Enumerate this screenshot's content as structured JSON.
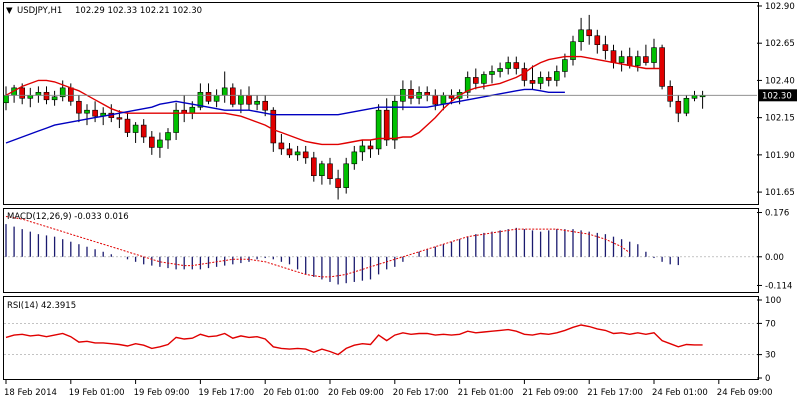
{
  "chart_data": [
    {
      "type": "candlestick",
      "title": "USDJPY,H1",
      "ohlc_label": "102.29 102.33 102.21 102.30",
      "current_price": 102.3,
      "current_label": "102.30",
      "ylim": [
        101.57,
        102.92
      ],
      "yticks": [
        101.65,
        101.9,
        102.15,
        102.4,
        102.65,
        102.9
      ],
      "ytick_labels": [
        "101.65",
        "101.90",
        "102.15",
        "102.40",
        "102.65",
        "102.90"
      ],
      "time_labels": [
        {
          "label": "18 Feb 2014",
          "index": 0
        },
        {
          "label": "19 Feb 01:00",
          "index": 8
        },
        {
          "label": "19 Feb 09:00",
          "index": 16
        },
        {
          "label": "19 Feb 17:00",
          "index": 24
        },
        {
          "label": "20 Feb 01:00",
          "index": 32
        },
        {
          "label": "20 Feb 09:00",
          "index": 40
        },
        {
          "label": "20 Feb 17:00",
          "index": 48
        },
        {
          "label": "21 Feb 01:00",
          "index": 56
        },
        {
          "label": "21 Feb 09:00",
          "index": 64
        },
        {
          "label": "21 Feb 17:00",
          "index": 72
        },
        {
          "label": "24 Feb 01:00",
          "index": 80
        },
        {
          "label": "24 Feb 09:00",
          "index": 88
        }
      ],
      "candles": [
        [
          102.25,
          102.36,
          102.2,
          102.3
        ],
        [
          102.3,
          102.37,
          102.25,
          102.35
        ],
        [
          102.35,
          102.38,
          102.24,
          102.28
        ],
        [
          102.28,
          102.35,
          102.22,
          102.3
        ],
        [
          102.3,
          102.36,
          102.25,
          102.32
        ],
        [
          102.32,
          102.36,
          102.24,
          102.27
        ],
        [
          102.27,
          102.33,
          102.23,
          102.29
        ],
        [
          102.29,
          102.4,
          102.26,
          102.35
        ],
        [
          102.35,
          102.38,
          102.23,
          102.26
        ],
        [
          102.26,
          102.3,
          102.12,
          102.18
        ],
        [
          102.18,
          102.24,
          102.1,
          102.2
        ],
        [
          102.2,
          102.26,
          102.12,
          102.16
        ],
        [
          102.16,
          102.22,
          102.1,
          102.18
        ],
        [
          102.18,
          102.24,
          102.12,
          102.15
        ],
        [
          102.15,
          102.2,
          102.08,
          102.14
        ],
        [
          102.14,
          102.18,
          102.02,
          102.05
        ],
        [
          102.05,
          102.12,
          101.98,
          102.1
        ],
        [
          102.1,
          102.14,
          101.98,
          102.02
        ],
        [
          102.02,
          102.06,
          101.9,
          101.95
        ],
        [
          101.95,
          102.05,
          101.88,
          102.0
        ],
        [
          102.0,
          102.08,
          101.94,
          102.05
        ],
        [
          102.05,
          102.25,
          102.0,
          102.2
        ],
        [
          102.2,
          102.3,
          102.12,
          102.18
        ],
        [
          102.18,
          102.26,
          102.14,
          102.22
        ],
        [
          102.22,
          102.38,
          102.2,
          102.32
        ],
        [
          102.32,
          102.38,
          102.24,
          102.26
        ],
        [
          102.26,
          102.34,
          102.22,
          102.3
        ],
        [
          102.3,
          102.46,
          102.25,
          102.35
        ],
        [
          102.35,
          102.38,
          102.22,
          102.24
        ],
        [
          102.24,
          102.34,
          102.18,
          102.3
        ],
        [
          102.3,
          102.36,
          102.2,
          102.24
        ],
        [
          102.24,
          102.3,
          102.2,
          102.26
        ],
        [
          102.26,
          102.3,
          102.16,
          102.2
        ],
        [
          102.2,
          102.22,
          101.92,
          101.98
        ],
        [
          101.98,
          102.04,
          101.9,
          101.94
        ],
        [
          101.94,
          101.98,
          101.88,
          101.9
        ],
        [
          101.9,
          101.96,
          101.86,
          101.92
        ],
        [
          101.92,
          101.96,
          101.84,
          101.88
        ],
        [
          101.88,
          101.92,
          101.72,
          101.76
        ],
        [
          101.76,
          101.86,
          101.7,
          101.84
        ],
        [
          101.84,
          101.88,
          101.7,
          101.74
        ],
        [
          101.74,
          101.8,
          101.6,
          101.68
        ],
        [
          101.68,
          101.88,
          101.64,
          101.84
        ],
        [
          101.84,
          101.96,
          101.8,
          101.92
        ],
        [
          101.92,
          102.0,
          101.86,
          101.96
        ],
        [
          101.96,
          102.0,
          101.88,
          101.94
        ],
        [
          101.94,
          102.24,
          101.9,
          102.2
        ],
        [
          102.2,
          102.28,
          101.96,
          102.0
        ],
        [
          102.0,
          102.3,
          101.94,
          102.26
        ],
        [
          102.26,
          102.4,
          102.2,
          102.34
        ],
        [
          102.34,
          102.4,
          102.24,
          102.28
        ],
        [
          102.28,
          102.36,
          102.24,
          102.32
        ],
        [
          102.32,
          102.36,
          102.26,
          102.3
        ],
        [
          102.3,
          102.34,
          102.2,
          102.24
        ],
        [
          102.24,
          102.32,
          102.2,
          102.3
        ],
        [
          102.3,
          102.34,
          102.24,
          102.28
        ],
        [
          102.28,
          102.34,
          102.24,
          102.32
        ],
        [
          102.32,
          102.46,
          102.28,
          102.42
        ],
        [
          102.42,
          102.48,
          102.34,
          102.38
        ],
        [
          102.38,
          102.46,
          102.34,
          102.44
        ],
        [
          102.44,
          102.5,
          102.38,
          102.46
        ],
        [
          102.46,
          102.52,
          102.42,
          102.48
        ],
        [
          102.48,
          102.56,
          102.44,
          102.52
        ],
        [
          102.52,
          102.56,
          102.44,
          102.48
        ],
        [
          102.48,
          102.52,
          102.36,
          102.4
        ],
        [
          102.4,
          102.5,
          102.34,
          102.38
        ],
        [
          102.38,
          102.46,
          102.34,
          102.42
        ],
        [
          102.42,
          102.46,
          102.36,
          102.4
        ],
        [
          102.4,
          102.5,
          102.36,
          102.46
        ],
        [
          102.46,
          102.58,
          102.42,
          102.54
        ],
        [
          102.54,
          102.7,
          102.5,
          102.66
        ],
        [
          102.66,
          102.82,
          102.6,
          102.74
        ],
        [
          102.74,
          102.84,
          102.64,
          102.7
        ],
        [
          102.7,
          102.74,
          102.58,
          102.64
        ],
        [
          102.64,
          102.7,
          102.54,
          102.6
        ],
        [
          102.6,
          102.64,
          102.48,
          102.52
        ],
        [
          102.52,
          102.6,
          102.46,
          102.56
        ],
        [
          102.56,
          102.62,
          102.48,
          102.5
        ],
        [
          102.5,
          102.6,
          102.46,
          102.56
        ],
        [
          102.56,
          102.64,
          102.5,
          102.52
        ],
        [
          102.52,
          102.68,
          102.48,
          102.62
        ],
        [
          102.62,
          102.64,
          102.34,
          102.36
        ],
        [
          102.36,
          102.4,
          102.22,
          102.26
        ],
        [
          102.26,
          102.3,
          102.12,
          102.18
        ],
        [
          102.18,
          102.3,
          102.16,
          102.28
        ],
        [
          102.28,
          102.33,
          102.26,
          102.3
        ],
        [
          102.29,
          102.33,
          102.21,
          102.3
        ]
      ],
      "series": [
        {
          "name": "ma_fast",
          "color": "#e00000",
          "values": [
            102.3,
            102.33,
            102.36,
            102.38,
            102.4,
            102.4,
            102.39,
            102.37,
            102.35,
            102.33,
            102.3,
            102.27,
            102.24,
            102.21,
            102.19,
            102.18,
            102.18,
            102.18,
            102.18,
            102.18,
            102.18,
            102.18,
            102.18,
            102.18,
            102.18,
            102.18,
            102.18,
            102.18,
            102.17,
            102.16,
            102.14,
            102.12,
            102.1,
            102.07,
            102.05,
            102.03,
            102.01,
            101.99,
            101.98,
            101.97,
            101.97,
            101.97,
            101.98,
            101.99,
            102.0,
            102.0,
            102.01,
            102.01,
            102.01,
            102.02,
            102.02,
            102.05,
            102.1,
            102.15,
            102.21,
            102.26,
            102.3,
            102.33,
            102.35,
            102.36,
            102.37,
            102.38,
            102.4,
            102.42,
            102.45,
            102.49,
            102.52,
            102.54,
            102.55,
            102.56,
            102.56,
            102.56,
            102.55,
            102.54,
            102.53,
            102.52,
            102.51,
            102.5,
            102.49,
            102.48,
            102.48,
            102.48
          ]
        },
        {
          "name": "ma_slow",
          "color": "#0000c0",
          "values": [
            101.98,
            102.0,
            102.02,
            102.04,
            102.06,
            102.08,
            102.1,
            102.11,
            102.12,
            102.13,
            102.14,
            102.15,
            102.16,
            102.17,
            102.18,
            102.19,
            102.2,
            102.21,
            102.22,
            102.24,
            102.25,
            102.26,
            102.25,
            102.24,
            102.23,
            102.22,
            102.21,
            102.2,
            102.2,
            102.2,
            102.2,
            102.19,
            102.18,
            102.17,
            102.17,
            102.17,
            102.17,
            102.17,
            102.17,
            102.17,
            102.17,
            102.17,
            102.18,
            102.19,
            102.2,
            102.21,
            102.22,
            102.22,
            102.22,
            102.22,
            102.22,
            102.22,
            102.22,
            102.23,
            102.24,
            102.25,
            102.26,
            102.27,
            102.28,
            102.29,
            102.3,
            102.31,
            102.32,
            102.33,
            102.34,
            102.34,
            102.33,
            102.32,
            102.32,
            102.32
          ]
        }
      ]
    },
    {
      "type": "histogram",
      "title": "MACD(12,26,9) -0.033 0.016",
      "ylim": [
        -0.14,
        0.19
      ],
      "yticks": [
        0.176,
        0.0,
        -0.114
      ],
      "ytick_labels": [
        "0.176",
        "0.00",
        "-0.114"
      ],
      "values": [
        0.13,
        0.12,
        0.11,
        0.1,
        0.09,
        0.085,
        0.08,
        0.07,
        0.06,
        0.05,
        0.04,
        0.03,
        0.02,
        0.01,
        0.0,
        -0.01,
        -0.02,
        -0.03,
        -0.035,
        -0.04,
        -0.045,
        -0.05,
        -0.05,
        -0.05,
        -0.05,
        -0.045,
        -0.04,
        -0.035,
        -0.03,
        -0.025,
        -0.02,
        -0.01,
        -0.005,
        -0.01,
        -0.02,
        -0.03,
        -0.05,
        -0.07,
        -0.08,
        -0.09,
        -0.1,
        -0.11,
        -0.105,
        -0.1,
        -0.095,
        -0.09,
        -0.07,
        -0.05,
        -0.04,
        -0.02,
        0.0,
        0.02,
        0.03,
        0.04,
        0.05,
        0.06,
        0.07,
        0.08,
        0.09,
        0.095,
        0.1,
        0.105,
        0.11,
        0.115,
        0.11,
        0.105,
        0.1,
        0.105,
        0.11,
        0.11,
        0.11,
        0.105,
        0.1,
        0.095,
        0.09,
        0.08,
        0.07,
        0.06,
        0.05,
        0.02,
        -0.005,
        -0.02,
        -0.03,
        -0.033
      ],
      "series": [
        {
          "name": "signal",
          "color": "#e00000",
          "values": [
            0.16,
            0.155,
            0.15,
            0.14,
            0.13,
            0.12,
            0.11,
            0.1,
            0.09,
            0.08,
            0.07,
            0.06,
            0.05,
            0.04,
            0.03,
            0.02,
            0.01,
            0.0,
            -0.01,
            -0.02,
            -0.025,
            -0.03,
            -0.035,
            -0.035,
            -0.03,
            -0.025,
            -0.02,
            -0.015,
            -0.01,
            -0.01,
            -0.01,
            -0.015,
            -0.02,
            -0.03,
            -0.04,
            -0.05,
            -0.06,
            -0.07,
            -0.075,
            -0.08,
            -0.08,
            -0.075,
            -0.07,
            -0.06,
            -0.05,
            -0.04,
            -0.03,
            -0.02,
            -0.01,
            0.0,
            0.01,
            0.02,
            0.03,
            0.04,
            0.05,
            0.06,
            0.07,
            0.08,
            0.085,
            0.09,
            0.095,
            0.1,
            0.105,
            0.11,
            0.11,
            0.11,
            0.11,
            0.11,
            0.11,
            0.105,
            0.1,
            0.095,
            0.09,
            0.08,
            0.07,
            0.055,
            0.04,
            0.016
          ]
        }
      ]
    },
    {
      "type": "line",
      "title": "RSI(14) 42.3915",
      "ylim": [
        0,
        100
      ],
      "yticks": [
        100,
        70,
        30,
        0
      ],
      "ytick_labels": [
        "100",
        "70",
        "30",
        "0"
      ],
      "levels": [
        70,
        30
      ],
      "series": [
        {
          "name": "rsi",
          "color": "#e00000",
          "values": [
            52,
            55,
            56,
            54,
            55,
            53,
            55,
            57,
            53,
            46,
            47,
            45,
            45,
            44,
            43,
            41,
            44,
            42,
            38,
            40,
            43,
            52,
            50,
            51,
            56,
            53,
            54,
            57,
            51,
            54,
            52,
            53,
            50,
            40,
            38,
            37,
            38,
            37,
            33,
            37,
            34,
            30,
            38,
            42,
            44,
            43,
            55,
            48,
            55,
            58,
            56,
            57,
            57,
            55,
            56,
            55,
            56,
            60,
            58,
            59,
            60,
            61,
            62,
            60,
            56,
            55,
            57,
            56,
            58,
            61,
            65,
            68,
            66,
            63,
            61,
            57,
            58,
            56,
            58,
            56,
            58,
            48,
            44,
            40,
            43,
            42.4,
            42.4
          ]
        }
      ]
    }
  ]
}
